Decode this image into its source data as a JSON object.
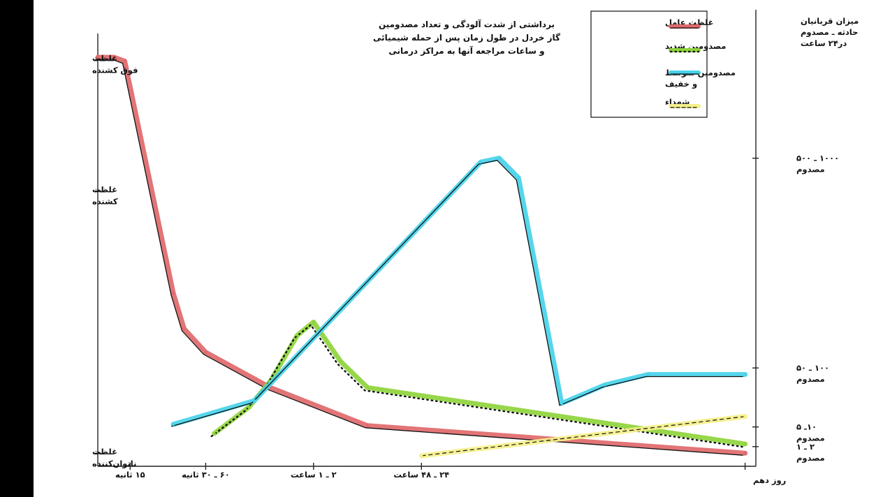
{
  "chart_data": {
    "type": "line",
    "title": [
      "برداشتی از شدت آلودگی و تعداد مصدومین",
      "گاز خردل در طول زمان پس از حمله شیمیائی",
      "و ساعات مراجعه آنها به مراکز درمانی"
    ],
    "x_ticks": [
      "۱۵ ثانیه",
      "۶۰ ـ ۳۰ ثانیه",
      "۲ ـ ۱ ساعت",
      "۲۴ ـ ۴۸ ساعت",
      "روز دهم"
    ],
    "x_tick_pos": [
      0.3,
      1.0,
      2.0,
      3.0,
      6.0
    ],
    "left_axis_ticks": [
      {
        "lines": [
          "غلظت",
          "فوق کشنده"
        ],
        "value": 3
      },
      {
        "lines": [
          "غلظت",
          "کشنده"
        ],
        "value": 2
      },
      {
        "lines": [
          "غلظت",
          "ناتوان‌کننده"
        ],
        "value": 0
      }
    ],
    "right_axis_title": [
      "میزان قربانیان",
      "حادثه ـ مصدوم",
      "در۲۴ ساعت"
    ],
    "right_axis_ticks": [
      {
        "lines": [
          "۱۰۰۰ ـ ۵۰۰",
          "مصدوم"
        ],
        "value": 2.25
      },
      {
        "lines": [
          "۱۰۰ ـ ۵۰",
          "مصدوم"
        ],
        "value": 0.65
      },
      {
        "lines": [
          "۱۰ـ ۵",
          "مصدوم"
        ],
        "value": 0.2
      },
      {
        "lines": [
          "۲ ـ ۱",
          "مصدوم"
        ],
        "value": 0.05
      }
    ],
    "xlim": [
      0,
      6.1
    ],
    "ylim": [
      -0.1,
      3.35
    ],
    "legend_position": "top-right",
    "series": [
      {
        "name": "غلظت عامل",
        "color": "#e0696b",
        "style": "solid",
        "x": [
          0.0,
          0.15,
          0.25,
          0.7,
          0.8,
          1.0,
          1.6,
          2.5,
          6.0
        ],
        "y": [
          3.02,
          3.02,
          2.99,
          1.22,
          0.95,
          0.77,
          0.5,
          0.21,
          0.0
        ]
      },
      {
        "name": "مصدومین شدید",
        "color": "#8fd43c",
        "style": "dotted",
        "x": [
          1.08,
          1.4,
          1.6,
          1.85,
          2.0,
          2.25,
          2.5,
          6.0
        ],
        "y": [
          0.15,
          0.35,
          0.55,
          0.9,
          1.0,
          0.7,
          0.5,
          0.07
        ]
      },
      {
        "name": "مصدومین متوسط و خفیف",
        "color": "#48d2ea",
        "style": "solid",
        "x": [
          0.7,
          1.45,
          3.55,
          3.72,
          3.9,
          4.3,
          4.7,
          5.1,
          6.0
        ],
        "y": [
          0.22,
          0.4,
          2.22,
          2.25,
          2.1,
          0.38,
          0.52,
          0.6,
          0.6
        ]
      },
      {
        "name": "شهداء",
        "color": "#f5f08a",
        "style": "ticked",
        "x": [
          3.0,
          6.0
        ],
        "y": [
          -0.02,
          0.28
        ]
      }
    ]
  }
}
